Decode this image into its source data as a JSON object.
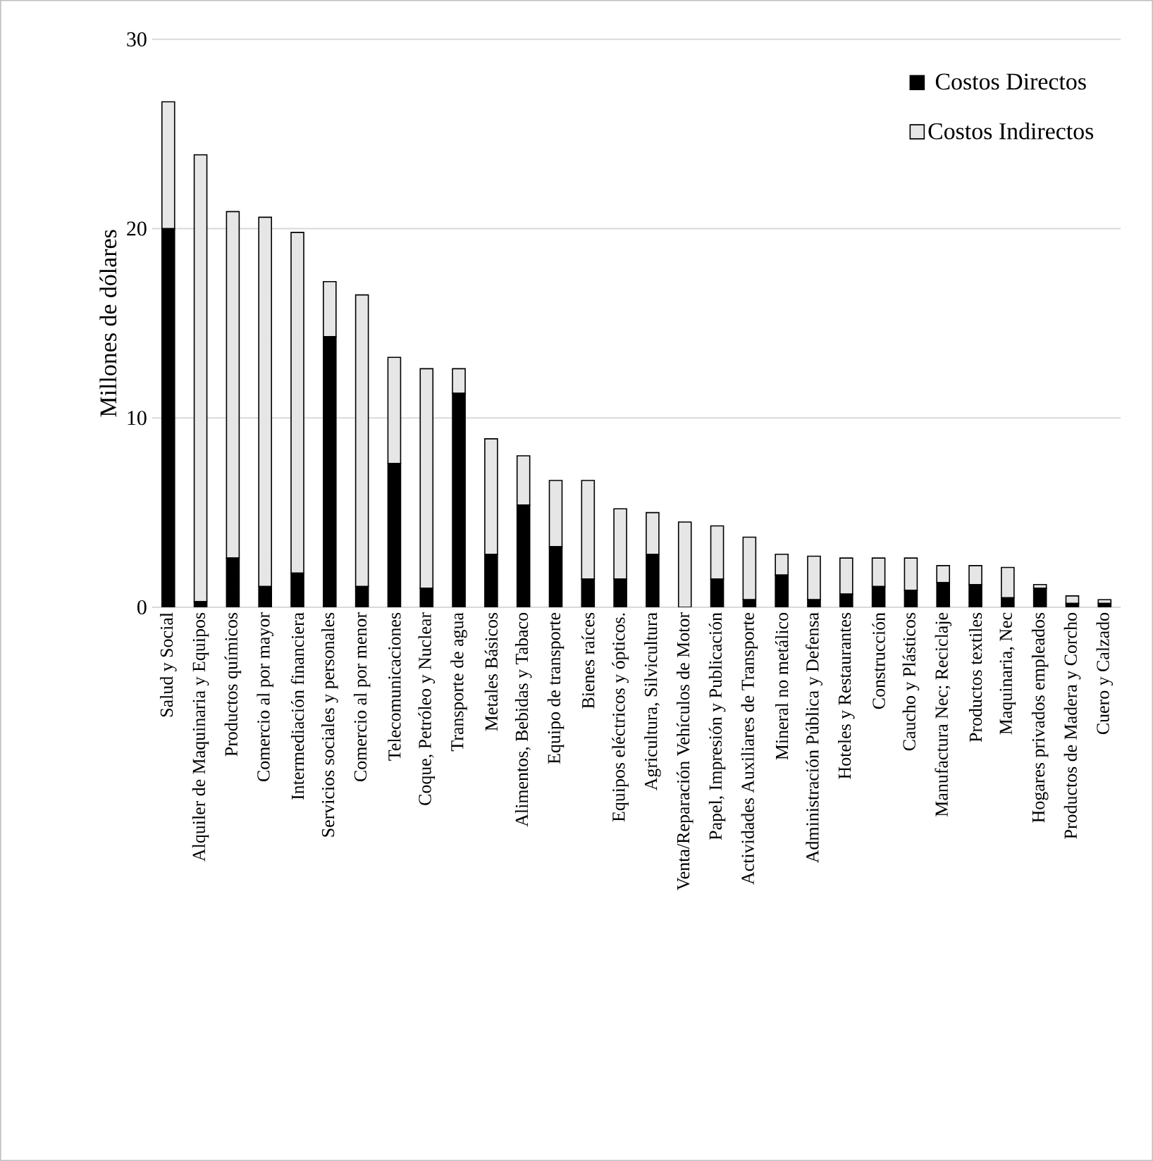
{
  "chart_data": {
    "type": "bar",
    "stacked": true,
    "ylabel": "Millones de dólares",
    "categories": [
      "Salud y Social",
      "Alquiler de Maquinaria y Equipos",
      "Productos químicos",
      "Comercio al por mayor",
      "Intermediación financiera",
      "Servicios sociales y personales",
      "Comercio al por menor",
      "Telecomunicaciones",
      "Coque, Petróleo y Nuclear",
      "Transporte de agua",
      "Metales Básicos",
      "Alimentos, Bebidas y Tabaco",
      "Equipo de transporte",
      "Bienes raíces",
      "Equipos eléctricos y ópticos.",
      "Agricultura, Silvicultura",
      "Venta/Reparación Vehículos de Motor",
      "Papel, Impresión y Publicación",
      "Actividades Auxiliares de Transporte",
      "Mineral no metálico",
      "Administración Pública y Defensa",
      "Hoteles y Restaurantes",
      "Construcción",
      "Caucho y Plásticos",
      "Manufactura Nec; Reciclaje",
      "Productos textiles",
      "Maquinaria, Nec",
      "Hogares privados empleados",
      "Productos de Madera y Corcho",
      "Cuero y Calzado"
    ],
    "series": [
      {
        "name": "Costos Directos",
        "color": "#000000",
        "values": [
          20.0,
          0.3,
          2.6,
          1.1,
          1.8,
          14.3,
          1.1,
          7.6,
          1.0,
          11.3,
          2.8,
          5.4,
          3.2,
          1.5,
          1.5,
          2.8,
          null,
          1.5,
          0.4,
          1.7,
          0.4,
          0.7,
          1.1,
          0.9,
          1.3,
          1.2,
          0.5,
          1.0,
          0.2,
          0.2
        ]
      },
      {
        "name": "Costos Indirectos",
        "color": "#e6e6e6",
        "values": [
          6.7,
          23.6,
          18.3,
          19.5,
          18.0,
          2.9,
          15.4,
          5.6,
          11.6,
          1.3,
          6.1,
          2.6,
          3.5,
          5.2,
          3.7,
          2.2,
          4.5,
          2.8,
          3.3,
          1.1,
          2.3,
          1.9,
          1.5,
          1.7,
          0.9,
          1.0,
          1.6,
          0.2,
          0.4,
          0.2
        ]
      }
    ],
    "ylim": [
      0,
      30
    ],
    "yticks": [
      0,
      10,
      20,
      30
    ],
    "grid": "y",
    "legend": "top right"
  }
}
